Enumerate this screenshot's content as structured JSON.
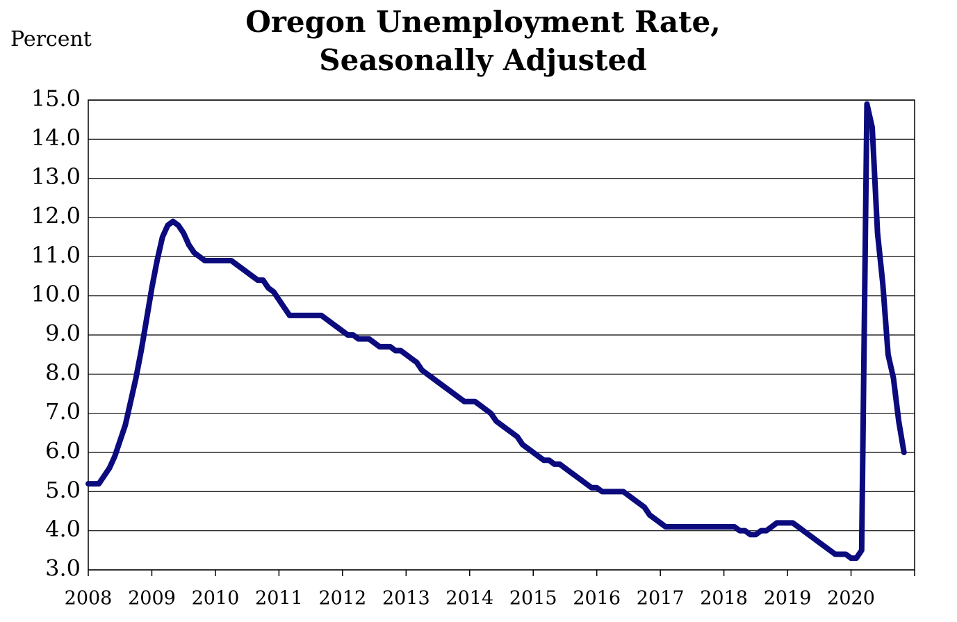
{
  "chart_data": {
    "type": "line",
    "title": [
      "Oregon Unemployment Rate,",
      "Seasonally Adjusted"
    ],
    "y_label": "Percent",
    "x": [
      2008,
      2008.083,
      2008.167,
      2008.25,
      2008.333,
      2008.417,
      2008.5,
      2008.583,
      2008.667,
      2008.75,
      2008.833,
      2008.917,
      2009,
      2009.083,
      2009.167,
      2009.25,
      2009.333,
      2009.417,
      2009.5,
      2009.583,
      2009.667,
      2009.75,
      2009.833,
      2009.917,
      2010,
      2010.083,
      2010.167,
      2010.25,
      2010.333,
      2010.417,
      2010.5,
      2010.583,
      2010.667,
      2010.75,
      2010.833,
      2010.917,
      2011,
      2011.083,
      2011.167,
      2011.25,
      2011.333,
      2011.417,
      2011.5,
      2011.583,
      2011.667,
      2011.75,
      2011.833,
      2011.917,
      2012,
      2012.083,
      2012.167,
      2012.25,
      2012.333,
      2012.417,
      2012.5,
      2012.583,
      2012.667,
      2012.75,
      2012.833,
      2012.917,
      2013,
      2013.083,
      2013.167,
      2013.25,
      2013.333,
      2013.417,
      2013.5,
      2013.583,
      2013.667,
      2013.75,
      2013.833,
      2013.917,
      2014,
      2014.083,
      2014.167,
      2014.25,
      2014.333,
      2014.417,
      2014.5,
      2014.583,
      2014.667,
      2014.75,
      2014.833,
      2014.917,
      2015,
      2015.083,
      2015.167,
      2015.25,
      2015.333,
      2015.417,
      2015.5,
      2015.583,
      2015.667,
      2015.75,
      2015.833,
      2015.917,
      2016,
      2016.083,
      2016.167,
      2016.25,
      2016.333,
      2016.417,
      2016.5,
      2016.583,
      2016.667,
      2016.75,
      2016.833,
      2016.917,
      2017,
      2017.083,
      2017.167,
      2017.25,
      2017.333,
      2017.417,
      2017.5,
      2017.583,
      2017.667,
      2017.75,
      2017.833,
      2017.917,
      2018,
      2018.083,
      2018.167,
      2018.25,
      2018.333,
      2018.417,
      2018.5,
      2018.583,
      2018.667,
      2018.75,
      2018.833,
      2018.917,
      2019,
      2019.083,
      2019.167,
      2019.25,
      2019.333,
      2019.417,
      2019.5,
      2019.583,
      2019.667,
      2019.75,
      2019.833,
      2019.917,
      2020,
      2020.083,
      2020.167,
      2020.25,
      2020.333,
      2020.417,
      2020.5,
      2020.583,
      2020.667,
      2020.75,
      2020.833
    ],
    "series": [
      {
        "color": "#0b0b7e",
        "values": [
          5.2,
          5.2,
          5.2,
          5.4,
          5.6,
          5.9,
          6.3,
          6.7,
          7.3,
          7.9,
          8.6,
          9.4,
          10.2,
          10.9,
          11.5,
          11.8,
          11.9,
          11.8,
          11.6,
          11.3,
          11.1,
          11.0,
          10.9,
          10.9,
          10.9,
          10.9,
          10.9,
          10.9,
          10.8,
          10.7,
          10.6,
          10.5,
          10.4,
          10.4,
          10.2,
          10.1,
          9.9,
          9.7,
          9.5,
          9.5,
          9.5,
          9.5,
          9.5,
          9.5,
          9.5,
          9.4,
          9.3,
          9.2,
          9.1,
          9.0,
          9.0,
          8.9,
          8.9,
          8.9,
          8.8,
          8.7,
          8.7,
          8.7,
          8.6,
          8.6,
          8.5,
          8.4,
          8.3,
          8.1,
          8.0,
          7.9,
          7.8,
          7.7,
          7.6,
          7.5,
          7.4,
          7.3,
          7.3,
          7.3,
          7.2,
          7.1,
          7.0,
          6.8,
          6.7,
          6.6,
          6.5,
          6.4,
          6.2,
          6.1,
          6.0,
          5.9,
          5.8,
          5.8,
          5.7,
          5.7,
          5.6,
          5.5,
          5.4,
          5.3,
          5.2,
          5.1,
          5.1,
          5.0,
          5.0,
          5.0,
          5.0,
          5.0,
          4.9,
          4.8,
          4.7,
          4.6,
          4.4,
          4.3,
          4.2,
          4.1,
          4.1,
          4.1,
          4.1,
          4.1,
          4.1,
          4.1,
          4.1,
          4.1,
          4.1,
          4.1,
          4.1,
          4.1,
          4.1,
          4.0,
          4.0,
          3.9,
          3.9,
          4.0,
          4.0,
          4.1,
          4.2,
          4.2,
          4.2,
          4.2,
          4.1,
          4.0,
          3.9,
          3.8,
          3.7,
          3.6,
          3.5,
          3.4,
          3.4,
          3.4,
          3.3,
          3.3,
          3.5,
          14.9,
          14.3,
          11.6,
          10.3,
          8.5,
          7.9,
          6.8,
          6.0
        ]
      }
    ],
    "xlim": [
      2008,
      2021
    ],
    "xticks": [
      2008,
      2009,
      2010,
      2011,
      2012,
      2013,
      2014,
      2015,
      2016,
      2017,
      2018,
      2019,
      2020
    ],
    "ylim": [
      3,
      15
    ],
    "yticks": [
      {
        "value": 3,
        "label": "3.0"
      },
      {
        "value": 4,
        "label": "4.0"
      },
      {
        "value": 5,
        "label": "5.0"
      },
      {
        "value": 6,
        "label": "6.0"
      },
      {
        "value": 7,
        "label": "7.0"
      },
      {
        "value": 8,
        "label": "8.0"
      },
      {
        "value": 9,
        "label": "9.0"
      },
      {
        "value": 10,
        "label": "10.0"
      },
      {
        "value": 11,
        "label": "11.0"
      },
      {
        "value": 12,
        "label": "12.0"
      },
      {
        "value": 13,
        "label": "13.0"
      },
      {
        "value": 14,
        "label": "14.0"
      },
      {
        "value": 15,
        "label": "15.0"
      }
    ],
    "grid": true
  }
}
